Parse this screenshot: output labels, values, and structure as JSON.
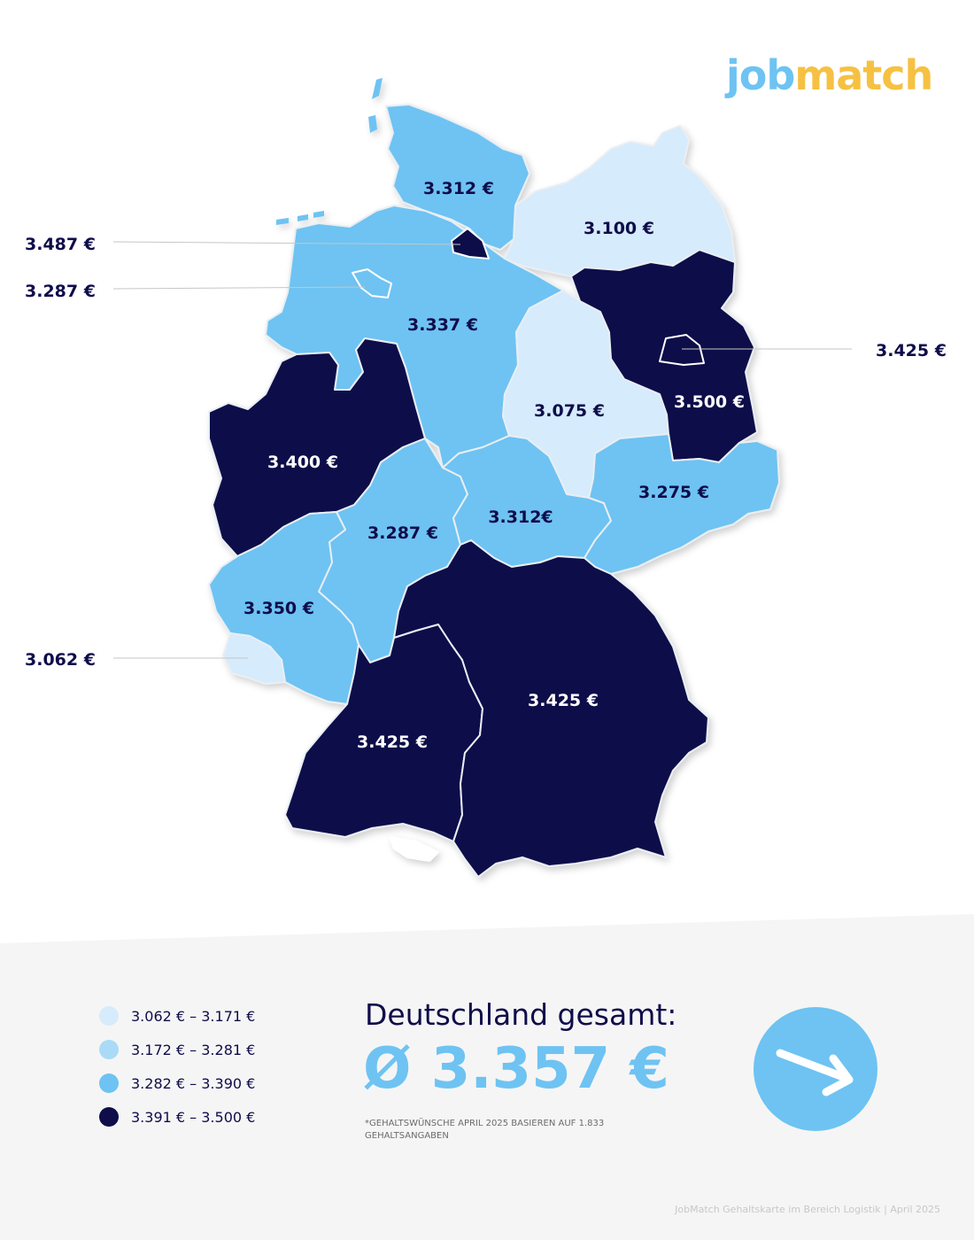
{
  "brand": {
    "logo_part1": "job",
    "logo_part2": "match"
  },
  "colors": {
    "range1": "#d6ebfb",
    "range2": "#a9dbf7",
    "range3": "#6ec3f2",
    "range4": "#0f0d4a",
    "accent": "#6ec3f2",
    "dark_text": "#0f0d4a"
  },
  "regions": {
    "schleswig_holstein": "3.312 €",
    "mecklenburg_vorpommern": "3.100 €",
    "niedersachsen": "3.337 €",
    "sachsen_anhalt": "3.075 €",
    "brandenburg": "3.500 €",
    "nordrhein_westfalen": "3.400 €",
    "hessen": "3.287 €",
    "thueringen": "3.312€",
    "sachsen": "3.275 €",
    "rheinland_pfalz": "3.350 €",
    "bayern": "3.425 €",
    "baden_wuerttemberg": "3.425 €"
  },
  "callouts": {
    "hamburg": "3.487 €",
    "bremen": "3.287 €",
    "berlin": "3.425 €",
    "saarland": "3.062 €"
  },
  "legend": [
    {
      "label": "3.062 € – 3.171 €",
      "color": "#d6ebfb"
    },
    {
      "label": "3.172 € – 3.281 €",
      "color": "#a9dbf7"
    },
    {
      "label": "3.282 € – 3.390 €",
      "color": "#6ec3f2"
    },
    {
      "label": "3.391 € – 3.500 €",
      "color": "#0f0d4a"
    }
  ],
  "summary": {
    "heading": "Deutschland gesamt:",
    "value": "Ø 3.357 €",
    "footnote": "*Gehaltswünsche April 2025 basieren auf 1.833 Gehaltsangaben"
  },
  "footer": "JobMatch Gehaltskarte im Bereich Logistik  | April 2025"
}
